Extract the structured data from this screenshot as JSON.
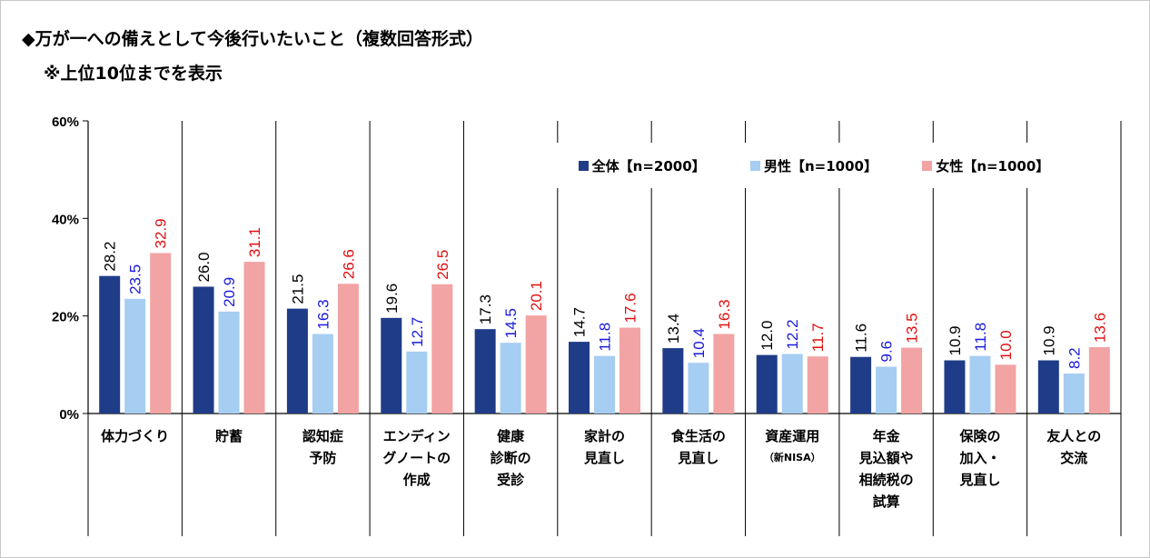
{
  "title_line1": "◆万が一への備えとして今後行いたいこと（複数回答形式）",
  "title_line2": "※上位10位までを表示",
  "colors": {
    "all": "#1f3c88",
    "male": "#a6cdf2",
    "female": "#f2a3a3",
    "all_label": "#000000",
    "male_label": "#1a1adb",
    "female_label": "#e01010"
  },
  "legend": [
    {
      "key": "all",
      "label": "全体【n=2000】"
    },
    {
      "key": "male",
      "label": "男性【n=1000】"
    },
    {
      "key": "female",
      "label": "女性【n=1000】"
    }
  ],
  "chart_data": {
    "type": "bar",
    "title": "万が一への備えとして今後行いたいこと（複数回答形式）",
    "ylim": [
      0,
      60
    ],
    "yticks": [
      "0%",
      "20%",
      "40%",
      "60%"
    ],
    "ytick_values": [
      0,
      20,
      40,
      60
    ],
    "grid": false,
    "legend_position": "top-right",
    "categories": [
      {
        "lines": [
          "体力づくり"
        ],
        "sub": ""
      },
      {
        "lines": [
          "貯蓄"
        ],
        "sub": ""
      },
      {
        "lines": [
          "認知症",
          "予防"
        ],
        "sub": ""
      },
      {
        "lines": [
          "エンディン",
          "グノートの",
          "作成"
        ],
        "sub": ""
      },
      {
        "lines": [
          "健康",
          "診断の",
          "受診"
        ],
        "sub": ""
      },
      {
        "lines": [
          "家計の",
          "見直し"
        ],
        "sub": ""
      },
      {
        "lines": [
          "食生活の",
          "見直し"
        ],
        "sub": ""
      },
      {
        "lines": [
          "資産運用"
        ],
        "sub": "（新NISA）"
      },
      {
        "lines": [
          "年金",
          "見込額や",
          "相続税の",
          "試算"
        ],
        "sub": ""
      },
      {
        "lines": [
          "保険の",
          "加入・",
          "見直し"
        ],
        "sub": ""
      },
      {
        "lines": [
          "友人との",
          "交流"
        ],
        "sub": ""
      }
    ],
    "series": [
      {
        "name": "全体【n=2000】",
        "key": "all",
        "values": [
          "28.2",
          "26.0",
          "21.5",
          "19.6",
          "17.3",
          "14.7",
          "13.4",
          "12.0",
          "11.6",
          "10.9",
          "10.9"
        ]
      },
      {
        "name": "男性【n=1000】",
        "key": "male",
        "values": [
          "23.5",
          "20.9",
          "16.3",
          "12.7",
          "14.5",
          "11.8",
          "10.4",
          "12.2",
          "9.6",
          "11.8",
          "8.2"
        ]
      },
      {
        "name": "女性【n=1000】",
        "key": "female",
        "values": [
          "32.9",
          "31.1",
          "26.6",
          "26.5",
          "20.1",
          "17.6",
          "16.3",
          "11.7",
          "13.5",
          "10.0",
          "13.6"
        ]
      }
    ]
  }
}
